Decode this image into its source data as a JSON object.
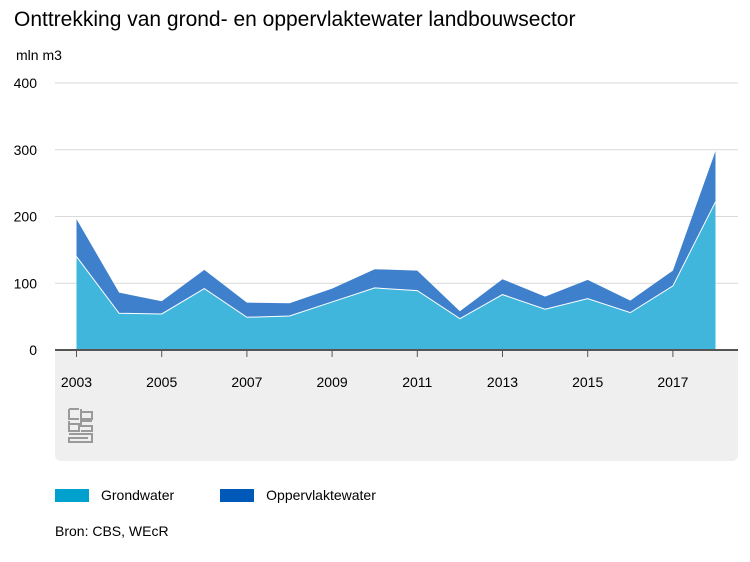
{
  "title": "Onttrekking van grond- en oppervlaktewater landbouwsector",
  "unit_label": "mln m3",
  "source": "Bron: CBS, WEcR",
  "colors": {
    "grondwater": "#41b6dc",
    "oppervlaktewater": "#3f80cd",
    "grondwater_legend": "#00a1cd",
    "oppervlaktewater_legend": "#0058b8",
    "grid": "#d9d9d9",
    "axis": "#555555"
  },
  "legend": [
    {
      "label": "Grondwater",
      "color_key": "grondwater_legend"
    },
    {
      "label": "Oppervlaktewater",
      "color_key": "oppervlaktewater_legend"
    }
  ],
  "chart_data": {
    "type": "area",
    "stacked": true,
    "title": "Onttrekking van grond- en oppervlaktewater landbouwsector",
    "ylabel": "mln m3",
    "x": [
      2003,
      2004,
      2005,
      2006,
      2007,
      2008,
      2009,
      2010,
      2011,
      2012,
      2013,
      2014,
      2015,
      2016,
      2017,
      2018
    ],
    "x_tick_labels": [
      "2003",
      "2005",
      "2007",
      "2009",
      "2011",
      "2013",
      "2015",
      "2017"
    ],
    "ylim": [
      0,
      400
    ],
    "y_ticks": [
      0,
      100,
      200,
      300,
      400
    ],
    "grid": true,
    "legend_position": "bottom-left",
    "series": [
      {
        "name": "Grondwater",
        "values": [
          140,
          55,
          54,
          92,
          49,
          51,
          72,
          93,
          89,
          47,
          83,
          61,
          77,
          56,
          96,
          222
        ]
      },
      {
        "name": "Oppervlaktewater",
        "values": [
          56,
          31,
          19,
          28,
          22,
          19,
          20,
          28,
          30,
          11,
          23,
          19,
          28,
          18,
          23,
          76
        ]
      }
    ]
  }
}
